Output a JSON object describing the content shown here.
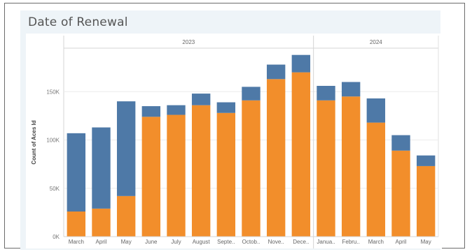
{
  "chart_data": {
    "type": "bar",
    "stacked": true,
    "title": "Date of Renewal",
    "ylabel": "Count of Aces Id",
    "xlabel": "",
    "ylim": [
      0,
      195000
    ],
    "yticks": [
      0,
      50000,
      100000,
      150000
    ],
    "ytick_labels": [
      "0K",
      "50K",
      "100K",
      "150K"
    ],
    "groups": [
      {
        "label": "2023",
        "count": 10
      },
      {
        "label": "2024",
        "count": 5
      }
    ],
    "categories": [
      "March",
      "April",
      "May",
      "June",
      "July",
      "August",
      "Septe..",
      "Octob..",
      "Nove..",
      "Dece..",
      "Janua..",
      "Febru..",
      "March",
      "April",
      "May"
    ],
    "series": [
      {
        "color": "#f28e2b",
        "values": [
          26000,
          29000,
          42000,
          124000,
          126000,
          136000,
          128000,
          141000,
          163000,
          170000,
          141000,
          145000,
          118000,
          89000,
          73000
        ]
      },
      {
        "color": "#4e79a7",
        "values": [
          81000,
          84000,
          98000,
          11000,
          10000,
          12000,
          11000,
          14000,
          15000,
          18000,
          15000,
          15000,
          25000,
          16000,
          11000
        ]
      }
    ],
    "grid": true,
    "legend": "none"
  },
  "title": "Date of Renewal"
}
